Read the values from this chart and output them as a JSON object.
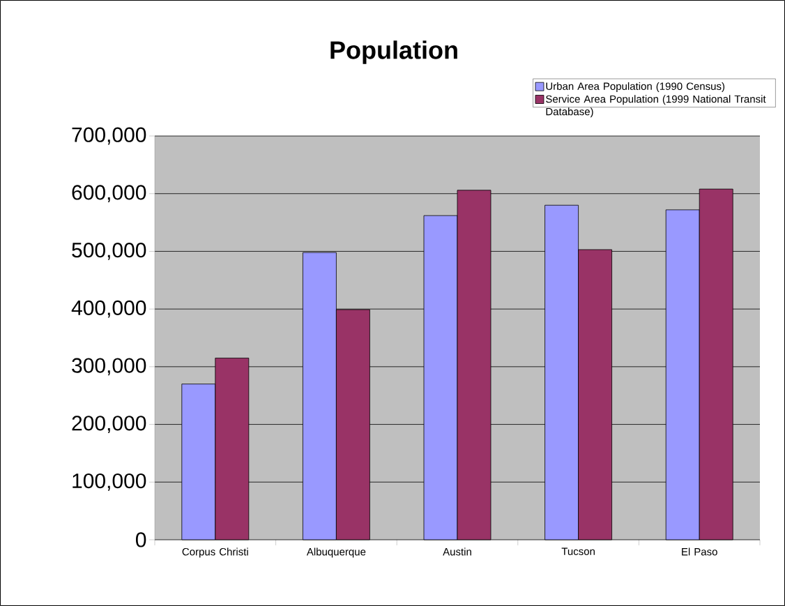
{
  "chart_data": {
    "type": "bar",
    "title": "Population",
    "categories": [
      "Corpus Christi",
      "Albuquerque",
      "Austin",
      "Tucson",
      "El Paso"
    ],
    "series": [
      {
        "name": "Urban Area Population (1990 Census)",
        "color": "#9999ff",
        "values": [
          270000,
          498000,
          562000,
          580000,
          572000
        ]
      },
      {
        "name": "Service Area Population (1999 National Transit Database)",
        "color": "#993366",
        "values": [
          315000,
          399000,
          606000,
          503000,
          608000
        ]
      }
    ],
    "ylim": [
      0,
      700000
    ],
    "yticks": [
      {
        "value": 0,
        "label": "0"
      },
      {
        "value": 100000,
        "label": "100,000"
      },
      {
        "value": 200000,
        "label": "200,000"
      },
      {
        "value": 300000,
        "label": "300,000"
      },
      {
        "value": 400000,
        "label": "400,000"
      },
      {
        "value": 500000,
        "label": "500,000"
      },
      {
        "value": 600000,
        "label": "600,000"
      },
      {
        "value": 700000,
        "label": "700,000"
      }
    ],
    "grid": "y",
    "legend": "top right"
  }
}
